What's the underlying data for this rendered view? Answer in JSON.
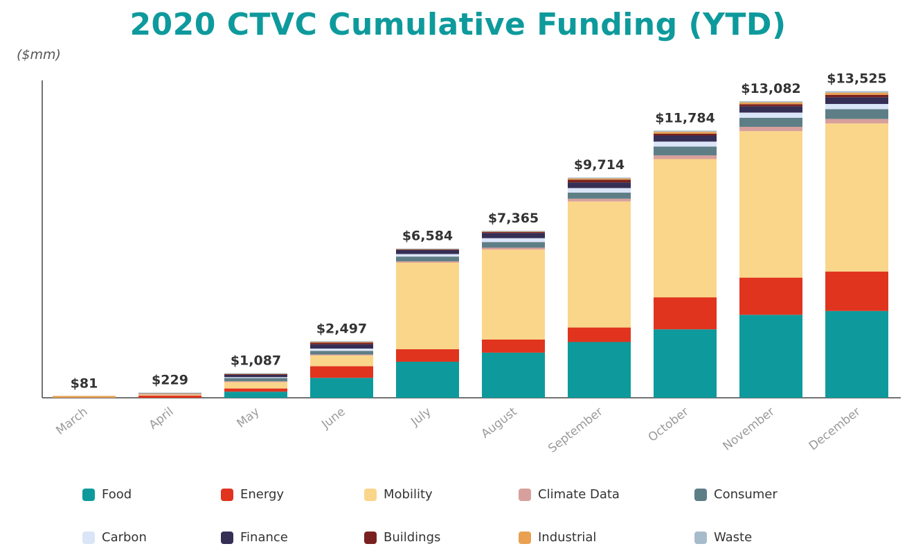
{
  "chart_data": {
    "type": "bar",
    "stacked": true,
    "title": "2020 CTVC Cumulative Funding (YTD)",
    "unit_label": "($mm)",
    "categories": [
      "March",
      "April",
      "May",
      "June",
      "July",
      "August",
      "September",
      "October",
      "November",
      "December"
    ],
    "totals": [
      81,
      229,
      1087,
      2497,
      6584,
      7365,
      9714,
      11784,
      13082,
      13525
    ],
    "total_labels": [
      "$81",
      "$229",
      "$1,087",
      "$2,497",
      "$6,584",
      "$7,365",
      "$9,714",
      "$11,784",
      "$13,082",
      "$13,525"
    ],
    "ylim": [
      0,
      14000
    ],
    "grid": false,
    "legend_position": "bottom",
    "series": [
      {
        "name": "Food",
        "color": "#0e9a9c",
        "values": [
          0,
          0,
          270,
          880,
          1590,
          1990,
          2460,
          3020,
          3660,
          3830
        ]
      },
      {
        "name": "Energy",
        "color": "#e0341f",
        "values": [
          0,
          100,
          140,
          510,
          550,
          580,
          640,
          1410,
          1640,
          1740
        ]
      },
      {
        "name": "Mobility",
        "color": "#fad68a",
        "values": [
          0,
          40,
          280,
          480,
          3820,
          3970,
          5560,
          6100,
          6460,
          6530
        ]
      },
      {
        "name": "Climate Data",
        "color": "#d8a09c",
        "values": [
          0,
          30,
          40,
          40,
          60,
          80,
          120,
          160,
          190,
          200
        ]
      },
      {
        "name": "Consumer",
        "color": "#5e7e86",
        "values": [
          0,
          0,
          140,
          160,
          210,
          250,
          270,
          390,
          400,
          430
        ]
      },
      {
        "name": "Carbon",
        "color": "#dbe5f8",
        "values": [
          0,
          10,
          40,
          100,
          110,
          170,
          200,
          220,
          230,
          230
        ]
      },
      {
        "name": "Finance",
        "color": "#352e55",
        "values": [
          0,
          0,
          100,
          190,
          170,
          230,
          250,
          270,
          280,
          300
        ]
      },
      {
        "name": "Buildings",
        "color": "#7a2120",
        "values": [
          0,
          19,
          50,
          80,
          50,
          50,
          120,
          80,
          90,
          100
        ]
      },
      {
        "name": "Industrial",
        "color": "#e9a050",
        "values": [
          81,
          10,
          17,
          27,
          14,
          25,
          54,
          84,
          82,
          100
        ]
      },
      {
        "name": "Waste",
        "color": "#a6bccb",
        "values": [
          0,
          20,
          10,
          30,
          10,
          20,
          40,
          50,
          50,
          65
        ]
      }
    ]
  }
}
